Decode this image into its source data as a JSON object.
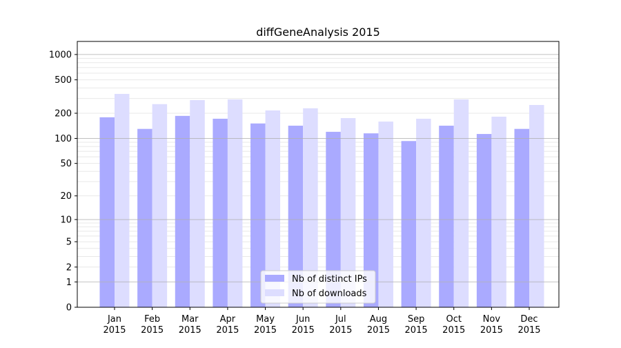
{
  "chart_data": {
    "type": "bar",
    "title": "diffGeneAnalysis 2015",
    "xlabel": "",
    "ylabel": "",
    "yscale": "log(1+y)",
    "ylim": [
      0,
      1430
    ],
    "yticks": [
      0,
      1,
      2,
      5,
      10,
      20,
      50,
      100,
      200,
      500,
      1000
    ],
    "grid": true,
    "legend_position": "bottom-center",
    "categories": [
      "Jan\n2015",
      "Feb\n2015",
      "Mar\n2015",
      "Apr\n2015",
      "May\n2015",
      "Jun\n2015",
      "Jul\n2015",
      "Aug\n2015",
      "Sep\n2015",
      "Oct\n2015",
      "Nov\n2015",
      "Dec\n2015"
    ],
    "series": [
      {
        "name": "Nb of distinct IPs",
        "color": "#aaaaff",
        "values": [
          179,
          130,
          186,
          172,
          151,
          142,
          120,
          115,
          93,
          142,
          113,
          130
        ]
      },
      {
        "name": "Nb of downloads",
        "color": "#ddddff",
        "values": [
          340,
          257,
          287,
          292,
          216,
          229,
          175,
          159,
          172,
          292,
          182,
          251
        ]
      }
    ]
  }
}
